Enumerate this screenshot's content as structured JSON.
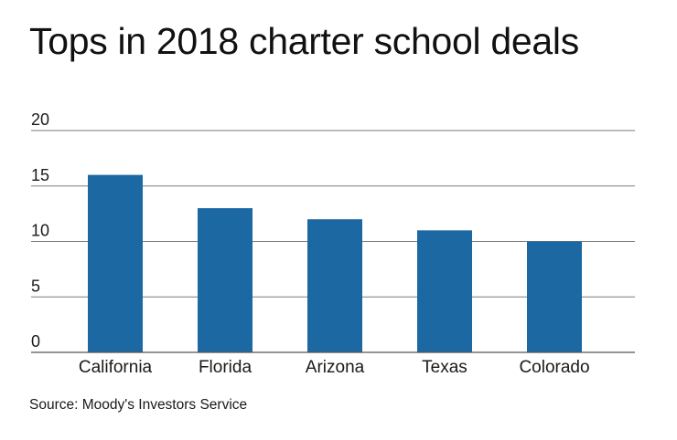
{
  "chart_data": {
    "type": "bar",
    "title": "Tops in 2018 charter school deals",
    "categories": [
      "California",
      "Florida",
      "Arizona",
      "Texas",
      "Colorado"
    ],
    "values": [
      16,
      13,
      12,
      11,
      10
    ],
    "ylim": [
      0,
      20
    ],
    "yticks": [
      "0",
      "5",
      "10",
      "15",
      "20"
    ],
    "xlabel": "",
    "ylabel": "",
    "grid": true,
    "bar_color": "#1b68a3",
    "gridline_color": "#7a7a7a"
  },
  "source": "Source: Moody's Investors Service"
}
